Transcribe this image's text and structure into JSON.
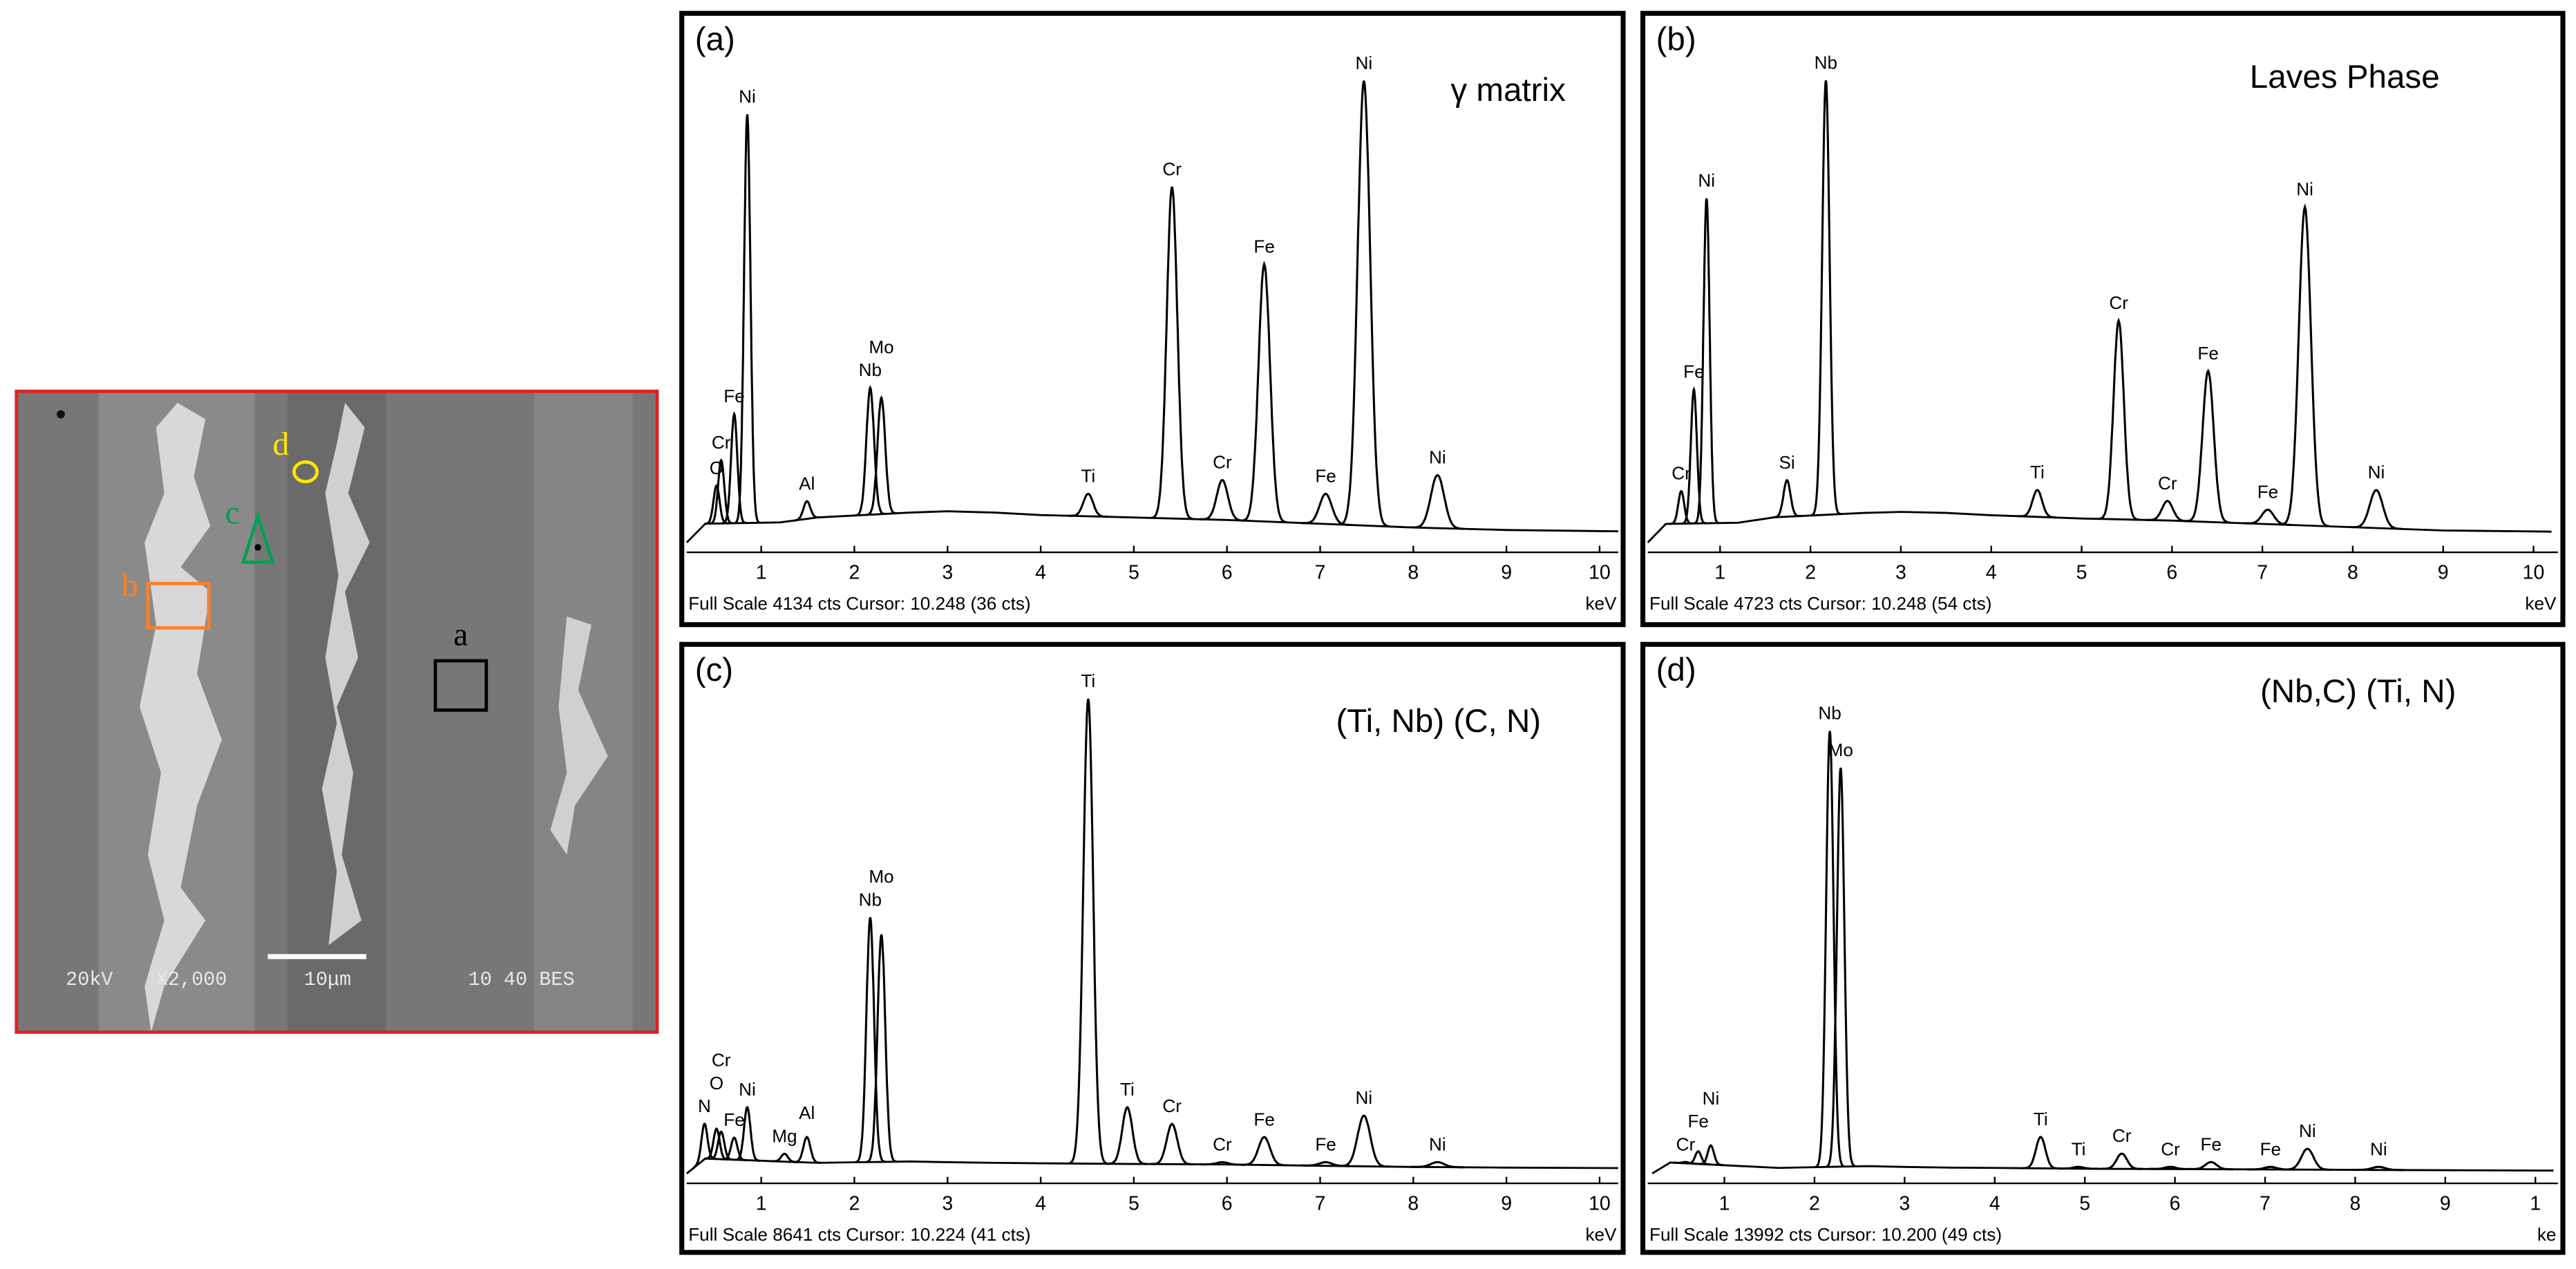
{
  "sem": {
    "markers": [
      "a",
      "b",
      "c",
      "d"
    ],
    "info": [
      "20kV",
      "X2,000",
      "10μm",
      "10 40 BES"
    ]
  },
  "chart_data": [
    {
      "type": "spectrum",
      "panel": "(a)",
      "title": "γ matrix",
      "footer": "Full Scale 4134 cts Cursor: 10.248  (36 cts)",
      "x_unit": "keV",
      "xlim": [
        0.2,
        10.2
      ],
      "xticks": [
        1,
        2,
        3,
        4,
        5,
        6,
        7,
        8,
        9,
        10
      ],
      "ylim": [
        0,
        4134
      ],
      "peaks": {
        "labels": [
          "O",
          "Cr",
          "Fe",
          "Ni",
          "Al",
          "Nb",
          "Mo",
          "Ti",
          "Cr",
          "Cr",
          "Fe",
          "Fe",
          "Ni",
          "Ni"
        ],
        "x": [
          0.52,
          0.57,
          0.71,
          0.85,
          1.49,
          2.17,
          2.29,
          4.51,
          5.41,
          5.95,
          6.4,
          7.06,
          7.47,
          8.26
        ],
        "values": [
          455,
          660,
          1030,
          3430,
          330,
          1240,
          1160,
          390,
          2850,
          500,
          2230,
          390,
          3700,
          540
        ]
      },
      "continuum": {
        "x": [
          0.2,
          0.4,
          1.2,
          1.6,
          2.6,
          3,
          3.5,
          4,
          5,
          6,
          7,
          8,
          9,
          10.2
        ],
        "values": [
          0,
          150,
          160,
          200,
          240,
          250,
          240,
          220,
          200,
          180,
          150,
          120,
          100,
          90
        ]
      }
    },
    {
      "type": "spectrum",
      "panel": "(b)",
      "title": "Laves Phase",
      "footer": "Full Scale 4723 cts Cursor: 10.248  (54 cts)",
      "x_unit": "keV",
      "xlim": [
        0.2,
        10.27
      ],
      "xticks": [
        1,
        2,
        3,
        4,
        5,
        6,
        7,
        8,
        9,
        10
      ],
      "ylim": [
        0,
        4723
      ],
      "peaks": {
        "labels": [
          "Cr",
          "Fe",
          "Ni",
          "Si",
          "Nb",
          "Ti",
          "Cr",
          "Cr",
          "Fe",
          "Fe",
          "Ni",
          "Ni"
        ],
        "x": [
          0.57,
          0.71,
          0.85,
          1.74,
          2.17,
          4.51,
          5.41,
          5.95,
          6.4,
          7.06,
          7.47,
          8.26
        ],
        "values": [
          470,
          1400,
          3150,
          570,
          4230,
          480,
          2030,
          380,
          1570,
          300,
          3070,
          480
        ]
      },
      "continuum": {
        "x": [
          0.2,
          0.4,
          1.2,
          1.6,
          2.6,
          3,
          3.5,
          4,
          5,
          6,
          7,
          8,
          9,
          10.2
        ],
        "values": [
          0,
          170,
          180,
          230,
          270,
          280,
          270,
          250,
          220,
          200,
          170,
          140,
          110,
          100
        ]
      }
    },
    {
      "type": "spectrum",
      "panel": "(c)",
      "title": "(Ti, Nb) (C, N)",
      "footer": "Full Scale 8641 cts Cursor: 10.224  (41 cts)",
      "x_unit": "keV",
      "xlim": [
        0.2,
        10.2
      ],
      "xticks": [
        1,
        2,
        3,
        4,
        5,
        6,
        7,
        8,
        9,
        10
      ],
      "ylim": [
        0,
        8641
      ],
      "peaks": {
        "labels": [
          "N",
          "O",
          "Cr",
          "Fe",
          "Ni",
          "Mg",
          "Al",
          "Nb",
          "Mo",
          "Ti",
          "Ti",
          "Cr",
          "Cr",
          "Fe",
          "Fe",
          "Ni",
          "Ni"
        ],
        "x": [
          0.39,
          0.52,
          0.57,
          0.71,
          0.85,
          1.25,
          1.49,
          2.17,
          2.29,
          4.51,
          4.93,
          5.41,
          5.95,
          6.4,
          7.06,
          7.47,
          8.26
        ],
        "values": [
          830,
          750,
          700,
          600,
          1110,
          330,
          610,
          4290,
          4000,
          7950,
          1110,
          830,
          190,
          610,
          190,
          970,
          190
        ]
      },
      "continuum": {
        "x": [
          0.2,
          0.4,
          1.2,
          1.6,
          2.6,
          3,
          3.5,
          4,
          5,
          6,
          7,
          8,
          9,
          10.2
        ],
        "values": [
          0,
          250,
          200,
          180,
          200,
          190,
          180,
          170,
          160,
          150,
          130,
          110,
          100,
          90
        ]
      }
    },
    {
      "type": "spectrum",
      "panel": "(d)",
      "title": "(Nb,C) (Ti, N)",
      "footer": "Full Scale 13992 cts Cursor: 10.200  (49 cts)",
      "x_unit": "ke",
      "xlim": [
        0.15,
        10.25
      ],
      "xticks": [
        1,
        2,
        3,
        4,
        5,
        6,
        7,
        8,
        9,
        {
          "value": 10,
          "label": "1"
        }
      ],
      "ylim": [
        0,
        13992
      ],
      "peaks": {
        "labels": [
          "Cr",
          "Fe",
          "Ni",
          "Nb",
          "Mo",
          "Ti",
          "Ti",
          "Cr",
          "Cr",
          "Fe",
          "Fe",
          "Ni",
          "Ni"
        ],
        "x": [
          0.57,
          0.71,
          0.85,
          2.17,
          2.29,
          4.51,
          4.93,
          5.41,
          5.95,
          6.4,
          7.06,
          7.47,
          8.26
        ],
        "values": [
          310,
          600,
          760,
          12000,
          11000,
          990,
          180,
          540,
          180,
          310,
          180,
          670,
          180
        ]
      },
      "continuum": {
        "x": [
          0.2,
          0.4,
          1.2,
          1.6,
          2.6,
          3,
          3.5,
          4,
          5,
          6,
          7,
          8,
          9,
          10.2
        ],
        "values": [
          0,
          300,
          200,
          150,
          200,
          180,
          160,
          150,
          130,
          120,
          110,
          100,
          90,
          80
        ]
      }
    }
  ]
}
